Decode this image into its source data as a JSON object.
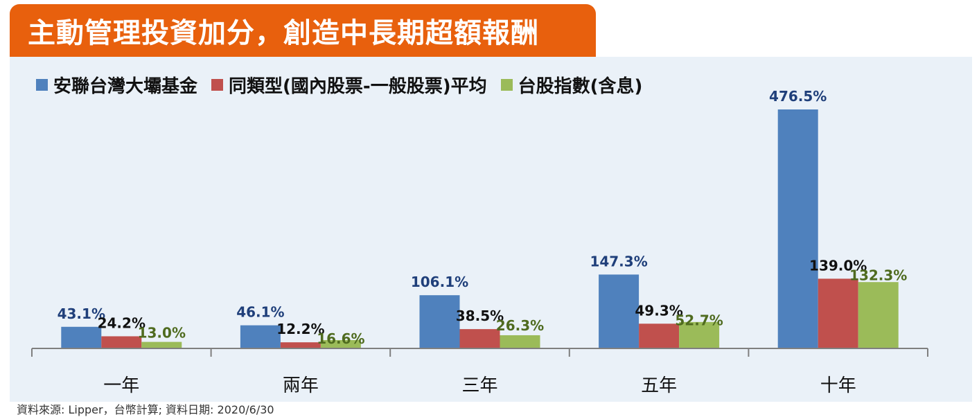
{
  "title": "主動管理投資加分，創造中長期超額報酬",
  "footer": "資料來源: Lipper，台幣計算; 資料日期: 2020/6/30",
  "chart_data": {
    "type": "bar",
    "categories": [
      "一年",
      "兩年",
      "三年",
      "五年",
      "十年"
    ],
    "series": [
      {
        "name": "安聯台灣大壩基金",
        "color": "#4f81bd",
        "label_color": "#1f3f7a",
        "values": [
          43.1,
          46.1,
          106.1,
          147.3,
          476.5
        ],
        "labels": [
          "43.1%",
          "46.1%",
          "106.1%",
          "147.3%",
          "476.5%"
        ]
      },
      {
        "name": "同類型(國內股票-一般股票)平均",
        "color": "#c0504d",
        "label_color": "#111111",
        "values": [
          24.2,
          12.2,
          38.5,
          49.3,
          139.0
        ],
        "labels": [
          "24.2%",
          "12.2%",
          "38.5%",
          "49.3%",
          "139.0%"
        ]
      },
      {
        "name": "台股指數(含息)",
        "color": "#9bbb59",
        "label_color": "#4f6b1f",
        "values": [
          13.0,
          16.6,
          26.3,
          52.7,
          132.3
        ],
        "labels": [
          "13.0%",
          "16.6%",
          "26.3%",
          "52.7%",
          "132.3%"
        ]
      }
    ],
    "ylim": [
      0,
      476.5
    ],
    "grid": false,
    "legend_position": "top-left",
    "xlabel": "",
    "ylabel": ""
  }
}
